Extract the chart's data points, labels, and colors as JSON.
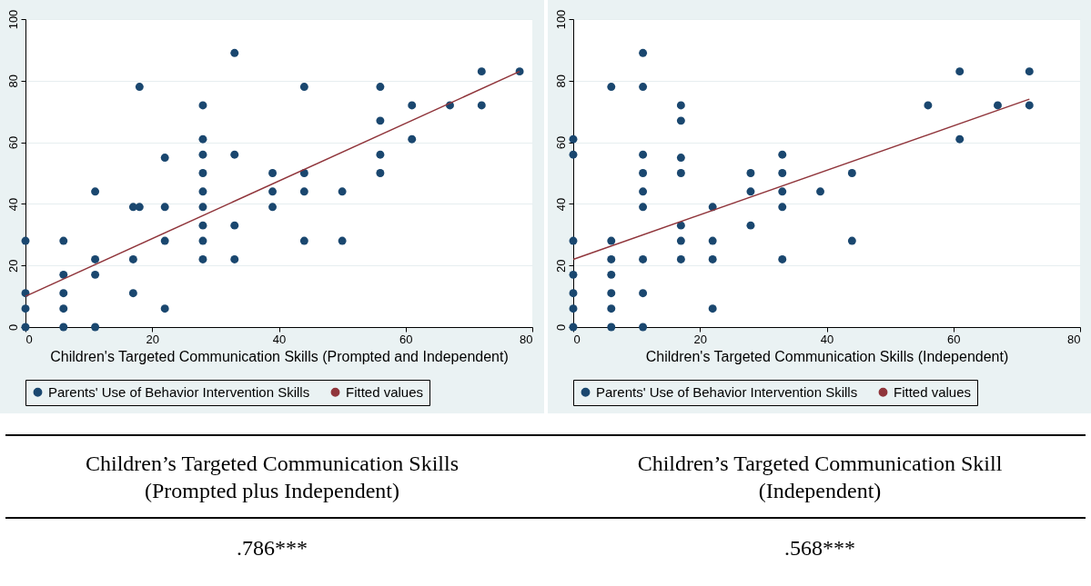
{
  "chart_data": [
    {
      "type": "scatter",
      "xlabel": "Children's Targeted Communication Skills (Prompted and Independent)",
      "xlim": [
        0,
        80
      ],
      "xticks": [
        0,
        20,
        40,
        60,
        80
      ],
      "ylim": [
        0,
        100
      ],
      "yticks": [
        0,
        20,
        40,
        60,
        80,
        100
      ],
      "grid": "y",
      "legend": "bottom",
      "series": [
        {
          "name": "Parents' Use of Behavior Intervention Skills",
          "color": "#1a476f",
          "x": [
            0,
            0,
            0,
            0,
            6,
            6,
            6,
            6,
            6,
            11,
            11,
            11,
            11,
            17,
            17,
            17,
            18,
            18,
            22,
            22,
            22,
            22,
            28,
            28,
            28,
            28,
            28,
            28,
            28,
            28,
            28,
            33,
            33,
            33,
            33,
            39,
            39,
            39,
            44,
            44,
            44,
            44,
            50,
            50,
            56,
            56,
            56,
            56,
            61,
            61,
            67,
            72,
            72,
            78
          ],
          "values": [
            28,
            11,
            6,
            0,
            28,
            17,
            11,
            6,
            0,
            44,
            22,
            17,
            0,
            39,
            22,
            11,
            78,
            39,
            55,
            39,
            28,
            6,
            72,
            61,
            56,
            50,
            44,
            39,
            33,
            28,
            22,
            89,
            56,
            33,
            22,
            50,
            44,
            39,
            78,
            50,
            44,
            28,
            44,
            28,
            78,
            67,
            56,
            50,
            72,
            61,
            72,
            83,
            72,
            83
          ]
        },
        {
          "name": "Fitted values",
          "type": "line",
          "color": "#90353b",
          "x": [
            0,
            78
          ],
          "values": [
            10,
            83
          ]
        }
      ],
      "annotations": [
        "Children’s Targeted Communication Skills (Prompted plus Independent)",
        ".786***"
      ]
    },
    {
      "type": "scatter",
      "xlabel": "Children's Targeted Communication Skills (Independent)",
      "xlim": [
        0,
        80
      ],
      "xticks": [
        0,
        20,
        40,
        60,
        80
      ],
      "ylim": [
        0,
        100
      ],
      "yticks": [
        0,
        20,
        40,
        60,
        80,
        100
      ],
      "grid": "y",
      "legend": "bottom",
      "series": [
        {
          "name": "Parents' Use of Behavior Intervention Skills",
          "color": "#1a476f",
          "x": [
            0,
            0,
            0,
            0,
            0,
            0,
            0,
            6,
            6,
            6,
            6,
            6,
            6,
            6,
            11,
            11,
            11,
            11,
            11,
            11,
            11,
            11,
            11,
            17,
            17,
            17,
            17,
            17,
            17,
            17,
            22,
            22,
            22,
            22,
            28,
            28,
            28,
            33,
            33,
            33,
            33,
            33,
            39,
            44,
            44,
            56,
            61,
            61,
            67,
            72,
            72
          ],
          "values": [
            61,
            56,
            28,
            17,
            11,
            6,
            0,
            78,
            28,
            22,
            17,
            11,
            6,
            0,
            89,
            78,
            56,
            50,
            44,
            39,
            22,
            11,
            0,
            72,
            67,
            55,
            50,
            33,
            28,
            22,
            39,
            28,
            22,
            6,
            50,
            44,
            33,
            56,
            50,
            44,
            39,
            22,
            44,
            50,
            28,
            72,
            83,
            61,
            72,
            83,
            72
          ]
        },
        {
          "name": "Fitted values",
          "type": "line",
          "color": "#90353b",
          "x": [
            0,
            72
          ],
          "values": [
            22,
            74
          ]
        }
      ],
      "annotations": [
        "Children’s Targeted Communication Skill (Independent)",
        ".568***"
      ]
    }
  ]
}
